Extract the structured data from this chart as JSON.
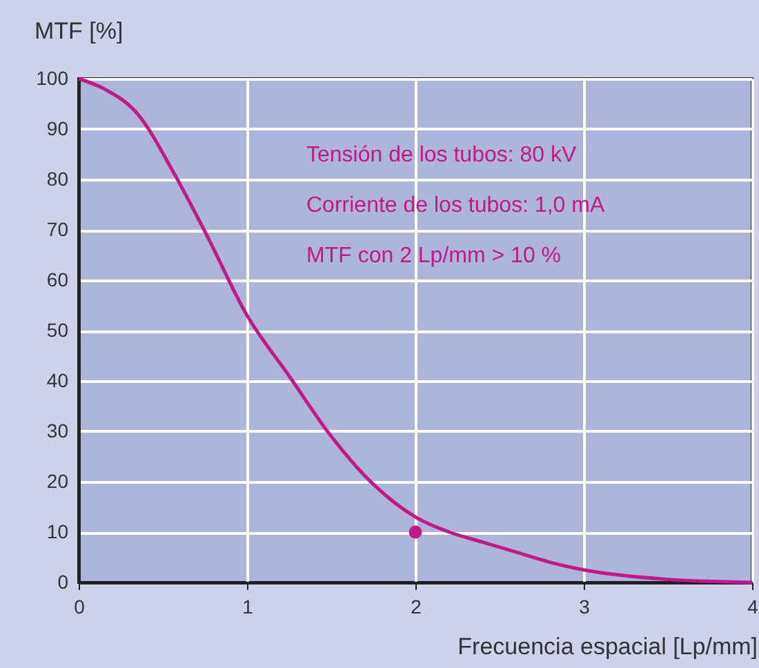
{
  "chart_data": {
    "type": "line",
    "xlabel": "Frecuencia espacial [Lp/mm]",
    "ylabel": "MTF [%]",
    "series": [
      {
        "color": "#c0198b",
        "x": [
          0,
          0.15,
          0.35,
          0.57,
          0.76,
          1.0,
          1.25,
          1.5,
          1.75,
          2.0,
          2.2,
          2.4,
          2.6,
          2.8,
          3.0,
          3.5,
          4.0
        ],
        "values": [
          100,
          98,
          93,
          81,
          69,
          53,
          41,
          29,
          19.5,
          13,
          10,
          8,
          6,
          4,
          2.5,
          0.6,
          0
        ]
      },
      {
        "type": "scatter",
        "color": "#c0198b",
        "x": [
          2
        ],
        "values": [
          10
        ]
      }
    ],
    "xlim": [
      0,
      4
    ],
    "xticks": [
      0,
      1,
      2,
      3,
      4
    ],
    "ylim": [
      0,
      100
    ],
    "yticks": [
      0,
      10,
      20,
      30,
      40,
      50,
      60,
      70,
      80,
      90,
      100
    ],
    "grid": true,
    "annotations": [
      "Tensión de los tubos: 80 kV",
      "Corriente de los tubos: 1,0 mA",
      "MTF con 2 Lp/mm > 10 %"
    ]
  }
}
